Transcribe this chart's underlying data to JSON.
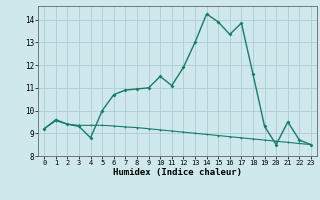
{
  "xlabel": "Humidex (Indice chaleur)",
  "background_color": "#cfe8eb",
  "line_color": "#1a7a6e",
  "grid_color": "#aacdd4",
  "xlim": [
    -0.5,
    23.5
  ],
  "ylim": [
    8.0,
    14.6
  ],
  "yticks": [
    8,
    9,
    10,
    11,
    12,
    13,
    14
  ],
  "xticks": [
    0,
    1,
    2,
    3,
    4,
    5,
    6,
    7,
    8,
    9,
    10,
    11,
    12,
    13,
    14,
    15,
    16,
    17,
    18,
    19,
    20,
    21,
    22,
    23
  ],
  "curve1_x": [
    0,
    1,
    2,
    3,
    4,
    5,
    6,
    7,
    8,
    9,
    10,
    11,
    12,
    13,
    14,
    15,
    16,
    17,
    18,
    19,
    20,
    21,
    22,
    23
  ],
  "curve1_y": [
    9.2,
    9.6,
    9.4,
    9.3,
    8.8,
    10.0,
    10.7,
    10.9,
    10.95,
    11.0,
    11.5,
    11.1,
    11.9,
    13.0,
    14.25,
    13.9,
    13.35,
    13.85,
    11.6,
    9.3,
    8.5,
    9.5,
    8.7,
    8.5
  ],
  "curve2_x": [
    0,
    1,
    2,
    3,
    4,
    5,
    6,
    7,
    8,
    9,
    10,
    11,
    12,
    13,
    14,
    15,
    16,
    17,
    18,
    19,
    20,
    21,
    22,
    23
  ],
  "curve2_y": [
    9.2,
    9.55,
    9.4,
    9.35,
    9.35,
    9.35,
    9.32,
    9.28,
    9.25,
    9.2,
    9.15,
    9.1,
    9.05,
    9.0,
    8.95,
    8.9,
    8.85,
    8.8,
    8.75,
    8.7,
    8.65,
    8.6,
    8.55,
    8.5
  ]
}
